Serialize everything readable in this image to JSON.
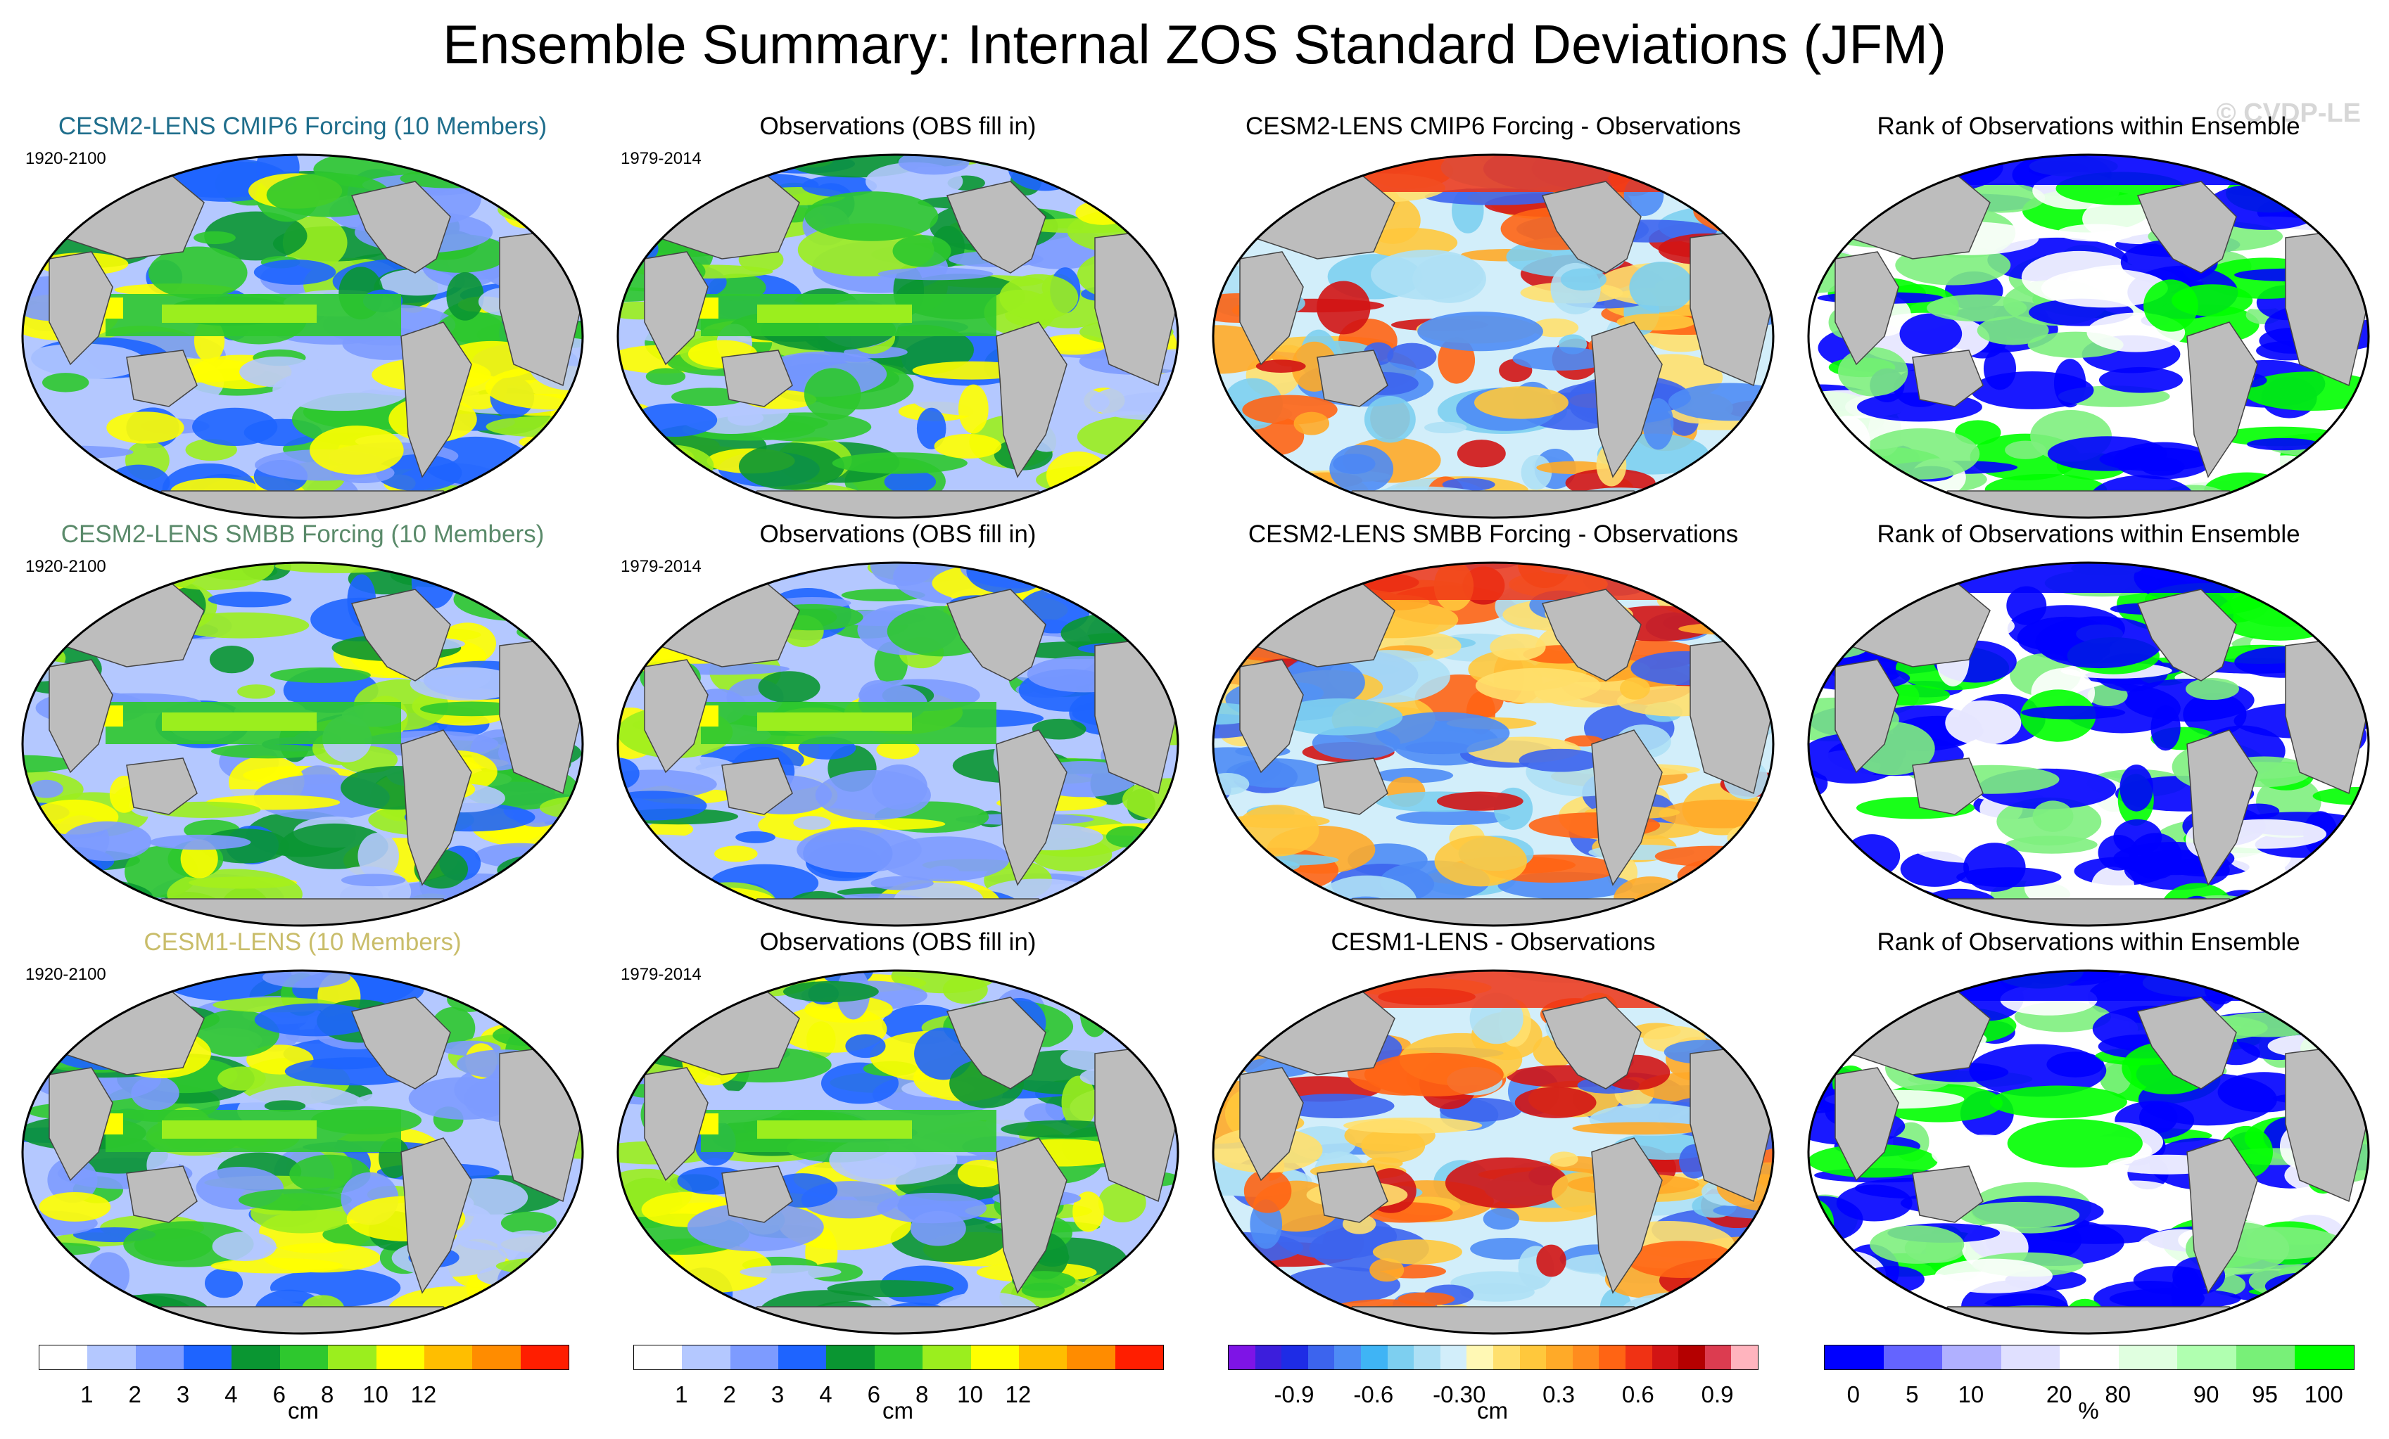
{
  "title": "Ensemble Summary: Internal ZOS Standard Deviations (JFM)",
  "watermark": "© CVDP-LE",
  "rows": [
    {
      "model_title": "CESM2-LENS CMIP6 Forcing (10 Members)",
      "model_color": "#1f6e8c",
      "model_years": "1920-2100",
      "obs_title": "Observations (OBS fill in)",
      "obs_years": "1979-2014",
      "diff_title": "CESM2-LENS CMIP6 Forcing - Observations",
      "rank_title": "Rank of Observations within Ensemble"
    },
    {
      "model_title": "CESM2-LENS SMBB Forcing (10 Members)",
      "model_color": "#5a8a6a",
      "model_years": "1920-2100",
      "obs_title": "Observations (OBS fill in)",
      "obs_years": "1979-2014",
      "diff_title": "CESM2-LENS SMBB Forcing - Observations",
      "rank_title": "Rank of Observations within Ensemble"
    },
    {
      "model_title": "CESM1-LENS (10 Members)",
      "model_color": "#c9bd6a",
      "model_years": "1920-2100",
      "obs_title": "Observations (OBS fill in)",
      "obs_years": "1979-2014",
      "diff_title": "CESM1-LENS - Observations",
      "rank_title": "Rank of Observations within Ensemble"
    }
  ],
  "colorbars": {
    "std": {
      "unit": "cm",
      "colors": [
        "#ffffff",
        "#b4c8ff",
        "#7d9bff",
        "#1e64ff",
        "#0a9632",
        "#2ec82e",
        "#9bee1e",
        "#ffff00",
        "#ffbe00",
        "#ff8c00",
        "#ff1e00"
      ],
      "ticks": [
        "1",
        "2",
        "3",
        "4",
        "6",
        "8",
        "10",
        "12"
      ]
    },
    "diff": {
      "unit": "cm",
      "colors": [
        "#7e14e6",
        "#3c1edc",
        "#1e2ce6",
        "#3c64ee",
        "#4e8cf5",
        "#3fb4f5",
        "#7dcff0",
        "#aee0f5",
        "#d2eefa",
        "#fff8b4",
        "#ffe06e",
        "#ffc83c",
        "#ffaa28",
        "#ff8c1e",
        "#ff6414",
        "#f03214",
        "#d21414",
        "#b40000",
        "#dc3c50",
        "#ffb4be"
      ],
      "ticks": [
        "-0.9",
        "-0.6",
        "-0.3",
        "0",
        "0.3",
        "0.6",
        "0.9"
      ]
    },
    "rank": {
      "unit": "%",
      "colors": [
        "#0000ff",
        "#6464ff",
        "#b0b0ff",
        "#e0e0ff",
        "#ffffff",
        "#e0ffe0",
        "#b0ffb0",
        "#78f078",
        "#00ff00"
      ],
      "ticks": [
        "0",
        "5",
        "10",
        "20",
        "80",
        "90",
        "95",
        "100"
      ]
    }
  }
}
